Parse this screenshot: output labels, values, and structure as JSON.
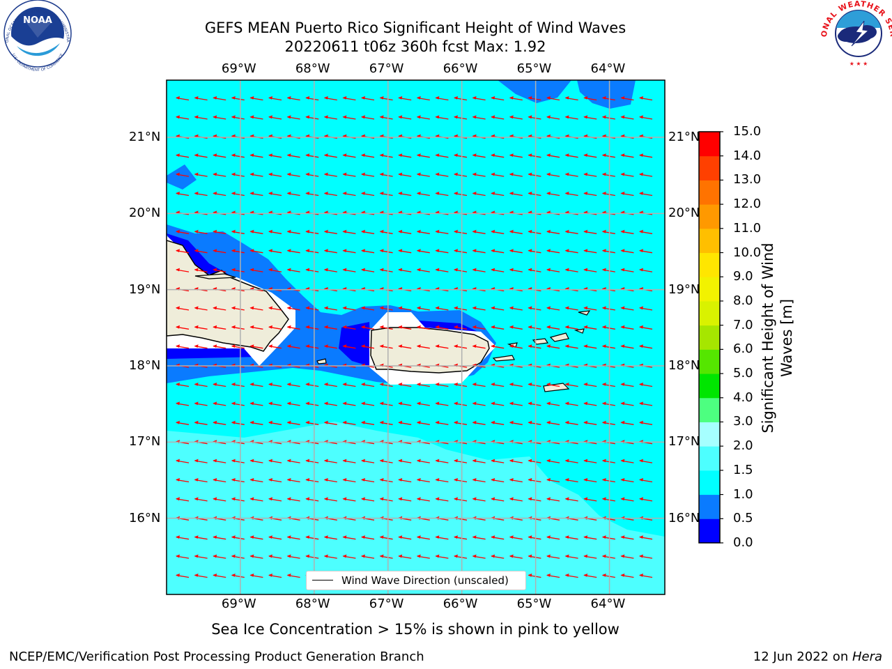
{
  "header": {
    "title_line1": "GEFS MEAN Puerto Rico Significant Height of Wind Waves",
    "title_line2": "20220611 t06z 360h fcst   Max: 1.92"
  },
  "logos": {
    "left": {
      "name": "noaa-logo",
      "text": "NOAA",
      "ring_text": "NATIONAL OCEANIC AND ATMOSPHERIC ADMINISTRATION · U.S. DEPARTMENT OF COMMERCE"
    },
    "right": {
      "name": "nws-logo",
      "ring_text": "NATIONAL WEATHER SERVICE"
    }
  },
  "map": {
    "lon_labels": [
      "69°W",
      "68°W",
      "67°W",
      "66°W",
      "65°W",
      "64°W"
    ],
    "lon_values": [
      -69,
      -68,
      -67,
      -66,
      -65,
      -64
    ],
    "lat_labels": [
      "21°N",
      "20°N",
      "19°N",
      "18°N",
      "17°N",
      "16°N"
    ],
    "lat_values": [
      21,
      20,
      19,
      18,
      17,
      16
    ],
    "extent": {
      "lon_min": -70,
      "lon_max": -63.25,
      "lat_min": 15,
      "lat_max": 21.75
    },
    "vector_direction": "toward west-southwest",
    "vector_color": "#ff0000",
    "land_color": "#efedda"
  },
  "legend": {
    "label": "Wind Wave Direction (unscaled)"
  },
  "colorbar": {
    "label": "Significant Height of Wind Waves [m]",
    "label_line1": "Significant Height of Wind",
    "label_line2": "Waves [m]",
    "ticks": [
      "0.0",
      "0.5",
      "1.0",
      "1.5",
      "2.0",
      "3.0",
      "4.0",
      "5.0",
      "6.0",
      "7.0",
      "8.0",
      "9.0",
      "10.0",
      "11.0",
      "12.0",
      "13.0",
      "14.0",
      "15.0"
    ],
    "colors": [
      "#0000ff",
      "#0a7bff",
      "#00ffff",
      "#4dffff",
      "#a6ffff",
      "#4dff80",
      "#00e600",
      "#55e600",
      "#a6e600",
      "#d9f200",
      "#f2f200",
      "#ffe600",
      "#ffbf00",
      "#ff9900",
      "#ff7300",
      "#ff4000",
      "#ff0000"
    ]
  },
  "subtitle": "Sea Ice Concentration > 15% is shown in pink to yellow",
  "footer": {
    "left": "NCEP/EMC/Verification Post Processing Product Generation Branch",
    "right_prefix": "12 Jun 2022 on ",
    "right_machine": "Hera"
  }
}
